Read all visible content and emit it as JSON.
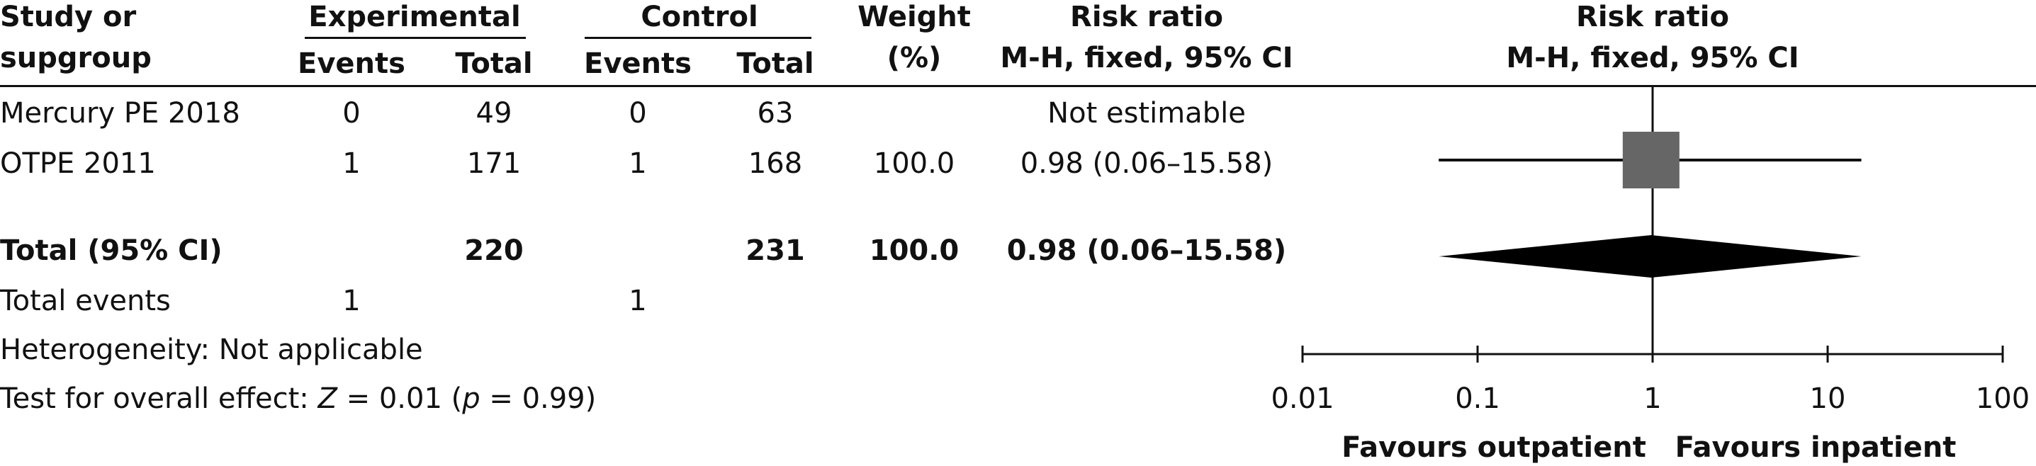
{
  "headers": {
    "study": [
      "Study or",
      "supgroup"
    ],
    "experimental": "Experimental",
    "control": "Control",
    "events": "Events",
    "total": "Total",
    "weight": [
      "Weight",
      "(%)"
    ],
    "rr_left": [
      "Risk ratio",
      "M-H, fixed, 95% CI"
    ],
    "rr_right": [
      "Risk ratio",
      "M-H, fixed, 95% CI"
    ]
  },
  "rows": [
    {
      "study": "Mercury PE 2018",
      "exp_events": "0",
      "exp_total": "49",
      "ctl_events": "0",
      "ctl_total": "63",
      "weight": "",
      "ci_text": "Not estimable"
    },
    {
      "study": "OTPE 2011",
      "exp_events": "1",
      "exp_total": "171",
      "ctl_events": "1",
      "ctl_total": "168",
      "weight": "100.0",
      "ci_text": "0.98 (0.06–15.58)"
    }
  ],
  "total": {
    "label": "Total (95% CI)",
    "exp_total": "220",
    "ctl_total": "231",
    "weight": "100.0",
    "ci_text": "0.98 (0.06–15.58)"
  },
  "total_events": {
    "label": "Total events",
    "exp": "1",
    "ctl": "1"
  },
  "heterogeneity": "Heterogeneity: Not applicable",
  "overall_effect": {
    "prefix": "Test for overall effect: ",
    "z": "Z",
    "z_val": " = 0.01 (",
    "p": "p",
    "p_val": " = 0.99)"
  },
  "chart_data": {
    "type": "forest",
    "x_scale": "log",
    "xlim": [
      0.01,
      100
    ],
    "ticks": [
      0.01,
      0.1,
      1,
      10,
      100
    ],
    "tick_labels": [
      "0.01",
      "0.1",
      "1",
      "10",
      "100"
    ],
    "null_value": 1,
    "studies": [
      {
        "study": "OTPE 2011",
        "estimate": 0.98,
        "lower": 0.06,
        "upper": 15.58,
        "weight": 100.0
      }
    ],
    "pooled": {
      "estimate": 0.98,
      "lower": 0.06,
      "upper": 15.58
    },
    "favours_left": "Favours outpatient",
    "favours_right": "Favours inpatient"
  },
  "colors": {
    "marker": "#666666",
    "diamond": "#000000",
    "line": "#111111"
  }
}
